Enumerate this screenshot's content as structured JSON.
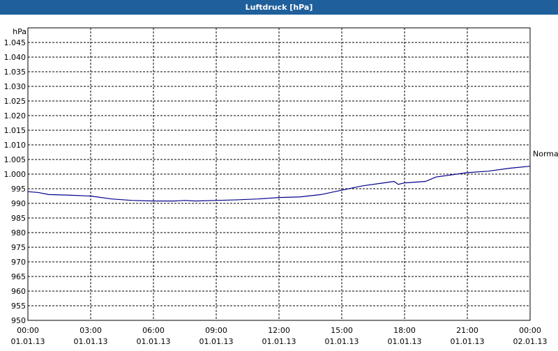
{
  "chart_data": {
    "type": "line",
    "title": "Luftdruck [hPa]",
    "y_unit": "hPa",
    "xlim": [
      0,
      24
    ],
    "xticks": [
      {
        "value": 0,
        "label": "00:00",
        "date": "01.01.13"
      },
      {
        "value": 3,
        "label": "03:00",
        "date": "01.01.13"
      },
      {
        "value": 6,
        "label": "06:00",
        "date": "01.01.13"
      },
      {
        "value": 9,
        "label": "09:00",
        "date": "01.01.13"
      },
      {
        "value": 12,
        "label": "12:00",
        "date": "01.01.13"
      },
      {
        "value": 15,
        "label": "15:00",
        "date": "01.01.13"
      },
      {
        "value": 18,
        "label": "18:00",
        "date": "01.01.13"
      },
      {
        "value": 21,
        "label": "21:00",
        "date": "01.01.13"
      },
      {
        "value": 24,
        "label": "00:00",
        "date": "02.01.13"
      }
    ],
    "ylim": [
      950,
      1050
    ],
    "yticks": [
      950,
      955,
      960,
      965,
      970,
      975,
      980,
      985,
      990,
      995,
      {
        "value": 1000,
        "label": "1.000"
      },
      {
        "value": 1005,
        "label": "1.005"
      },
      {
        "value": 1010,
        "label": "1.010"
      },
      {
        "value": 1015,
        "label": "1.015"
      },
      {
        "value": 1020,
        "label": "1.020"
      },
      {
        "value": 1025,
        "label": "1.025"
      },
      {
        "value": 1030,
        "label": "1.030"
      },
      {
        "value": 1035,
        "label": "1.035"
      },
      {
        "value": 1040,
        "label": "1.040"
      },
      {
        "value": 1045,
        "label": "1.045"
      }
    ],
    "grid": true,
    "x": [
      0,
      0.5,
      1,
      2,
      3,
      4,
      5,
      6,
      7,
      7.5,
      8,
      9,
      10,
      11,
      12,
      13,
      14,
      15,
      16,
      17,
      17.5,
      17.7,
      18,
      19,
      19.5,
      20.5,
      21,
      22,
      23,
      24
    ],
    "series": [
      {
        "name": "Normal",
        "color": "#00008b",
        "values": [
          994,
          993.7,
          993,
          992.8,
          992.5,
          991.5,
          991,
          990.8,
          990.8,
          991,
          990.8,
          991,
          991.2,
          991.5,
          992,
          992.2,
          993,
          994.5,
          996,
          997,
          997.5,
          996.5,
          997,
          997.5,
          999,
          1000,
          1000.5,
          1001,
          1002,
          1002.7
        ]
      }
    ]
  }
}
